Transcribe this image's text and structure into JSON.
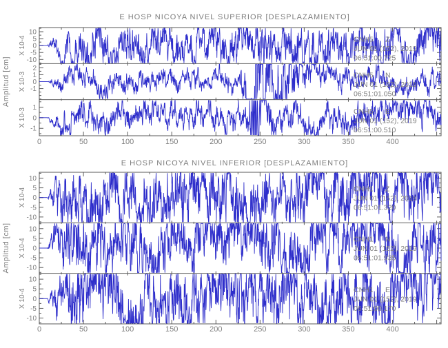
{
  "style": {
    "background": "#ffffff",
    "trace_color": "#2e2ecb",
    "frame_color": "#5a5a5a",
    "text_color": "#7d7d7d"
  },
  "chart_data": [
    {
      "type": "line",
      "panel": "superior",
      "title": "E HOSP NICOYA NIVEL SUPERIOR [DESPLAZAMIENTO]",
      "ylabel": "Amplitud [cm]",
      "xlabel": "",
      "grid": false,
      "xlim": [
        0,
        455
      ],
      "x_ticks": [
        0,
        50,
        100,
        150,
        200,
        250,
        300,
        350,
        400
      ],
      "x_minor_step": 25,
      "traces": [
        {
          "station": "CNH5",
          "component": "Z",
          "date": "JUN 01 (152), 2019",
          "time": "06:51:00.725",
          "scale": "X 10-4",
          "y_ticks": [
            10,
            5,
            0,
            -5,
            -10
          ],
          "y_minor_step": 2.5,
          "ylim": [
            -13,
            13
          ],
          "seed": 7,
          "amp": 0.55,
          "hf": 0.5,
          "burst": null
        },
        {
          "station": "CNH5",
          "component": "N",
          "date": "JUN 01 (152), 2019",
          "time": "06:51:01.050",
          "scale": "X 10-3",
          "y_ticks": [
            2,
            1,
            0,
            -1
          ],
          "y_minor_step": 0.5,
          "ylim": [
            -2.6,
            2.6
          ],
          "seed": 13,
          "amp": 0.28,
          "hf": 0.5,
          "burst": {
            "pos": 0.535,
            "rise": 0.012,
            "decay": 0.05,
            "amp": 2.6
          }
        },
        {
          "station": "CNH5",
          "component": "E",
          "date": "JUN 01 (152), 2019",
          "time": "06:51:00.510",
          "scale": "X 10-3",
          "y_ticks": [
            1,
            0,
            -1
          ],
          "y_minor_step": 0.5,
          "ylim": [
            -1.7,
            1.7
          ],
          "seed": 21,
          "amp": 0.38,
          "hf": 0.5,
          "burst": {
            "pos": 0.534,
            "rise": 0.0045,
            "decay": 0.016,
            "amp": 3.0
          }
        }
      ]
    },
    {
      "type": "line",
      "panel": "inferior",
      "title": "E HOSP NICOYA NIVEL INFERIOR [DESPLAZAMIENTO]",
      "ylabel": "Amplitud [cm]",
      "xlabel": "",
      "grid": false,
      "xlim": [
        0,
        455
      ],
      "x_ticks": [
        0,
        50,
        100,
        150,
        200,
        250,
        300,
        350,
        400
      ],
      "x_minor_step": 25,
      "traces": [
        {
          "station": "CNH1",
          "component": "Z",
          "date": "JUN 01 (152), 2019",
          "time": "06:51:01.320",
          "scale": "X 10-4",
          "y_ticks": [
            10,
            5,
            0,
            -5,
            -10
          ],
          "y_minor_step": 2.5,
          "ylim": [
            -13,
            13
          ],
          "seed": 31,
          "amp": 0.55,
          "hf": 0.7,
          "burst": null
        },
        {
          "station": "CNH1",
          "component": "N",
          "date": "JUN 01 (152), 2019",
          "time": "06:51:01.935",
          "scale": "X 10-4",
          "y_ticks": [
            10,
            5,
            0,
            -5,
            -10
          ],
          "y_minor_step": 2.5,
          "ylim": [
            -13,
            13
          ],
          "seed": 43,
          "amp": 0.55,
          "hf": 0.7,
          "burst": null
        },
        {
          "station": "CNH1",
          "component": "E",
          "date": "JUN 01 (152), 2019",
          "time": "06:51:00.170",
          "scale": "X 10-4",
          "y_ticks": [
            10,
            5,
            0,
            -5,
            -10
          ],
          "y_minor_step": 2.5,
          "ylim": [
            -13,
            13
          ],
          "seed": 57,
          "amp": 0.6,
          "hf": 0.7,
          "burst": null
        }
      ]
    }
  ]
}
